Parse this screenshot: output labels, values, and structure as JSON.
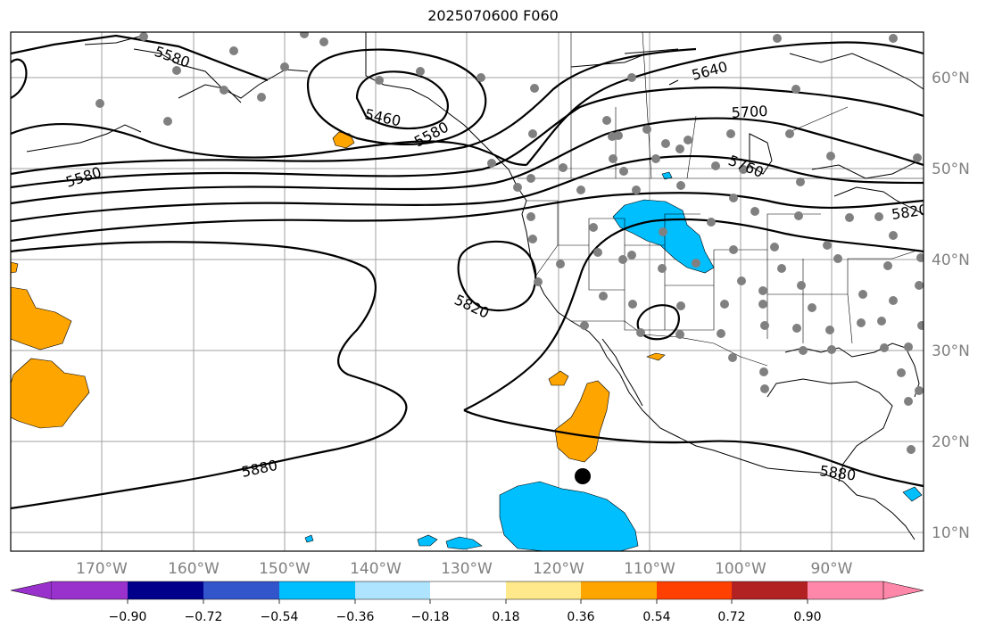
{
  "title": "2025070600 F060",
  "map": {
    "lon_labels": [
      "170°W",
      "160°W",
      "150°W",
      "140°W",
      "130°W",
      "120°W",
      "110°W",
      "100°W",
      "90°W"
    ],
    "lat_labels": [
      "60°N",
      "50°N",
      "40°N",
      "30°N",
      "20°N",
      "10°N"
    ],
    "contour_labels": [
      "5580",
      "5460",
      "5580",
      "5580",
      "5640",
      "5700",
      "5760",
      "5820",
      "5820",
      "5880",
      "5880"
    ],
    "colors": {
      "neg_strong": "#00bfff",
      "pos_mod": "#ffa500",
      "contour": "#000000",
      "grid": "#a0a0a0",
      "station": "#808080"
    },
    "station_marker": "gray-dot",
    "storm_marker": "black-dot"
  },
  "colorbar": {
    "colors": [
      "#9932cc",
      "#00008b",
      "#3355cc",
      "#00bfff",
      "#aee4ff",
      "#ffffff",
      "#ffe98a",
      "#ffa500",
      "#ff4000",
      "#b22222",
      "#ff88aa"
    ],
    "tick_labels": [
      "−0.90",
      "−0.72",
      "−0.54",
      "−0.36",
      "−0.18",
      "0.18",
      "0.36",
      "0.54",
      "0.72",
      "0.90"
    ]
  }
}
